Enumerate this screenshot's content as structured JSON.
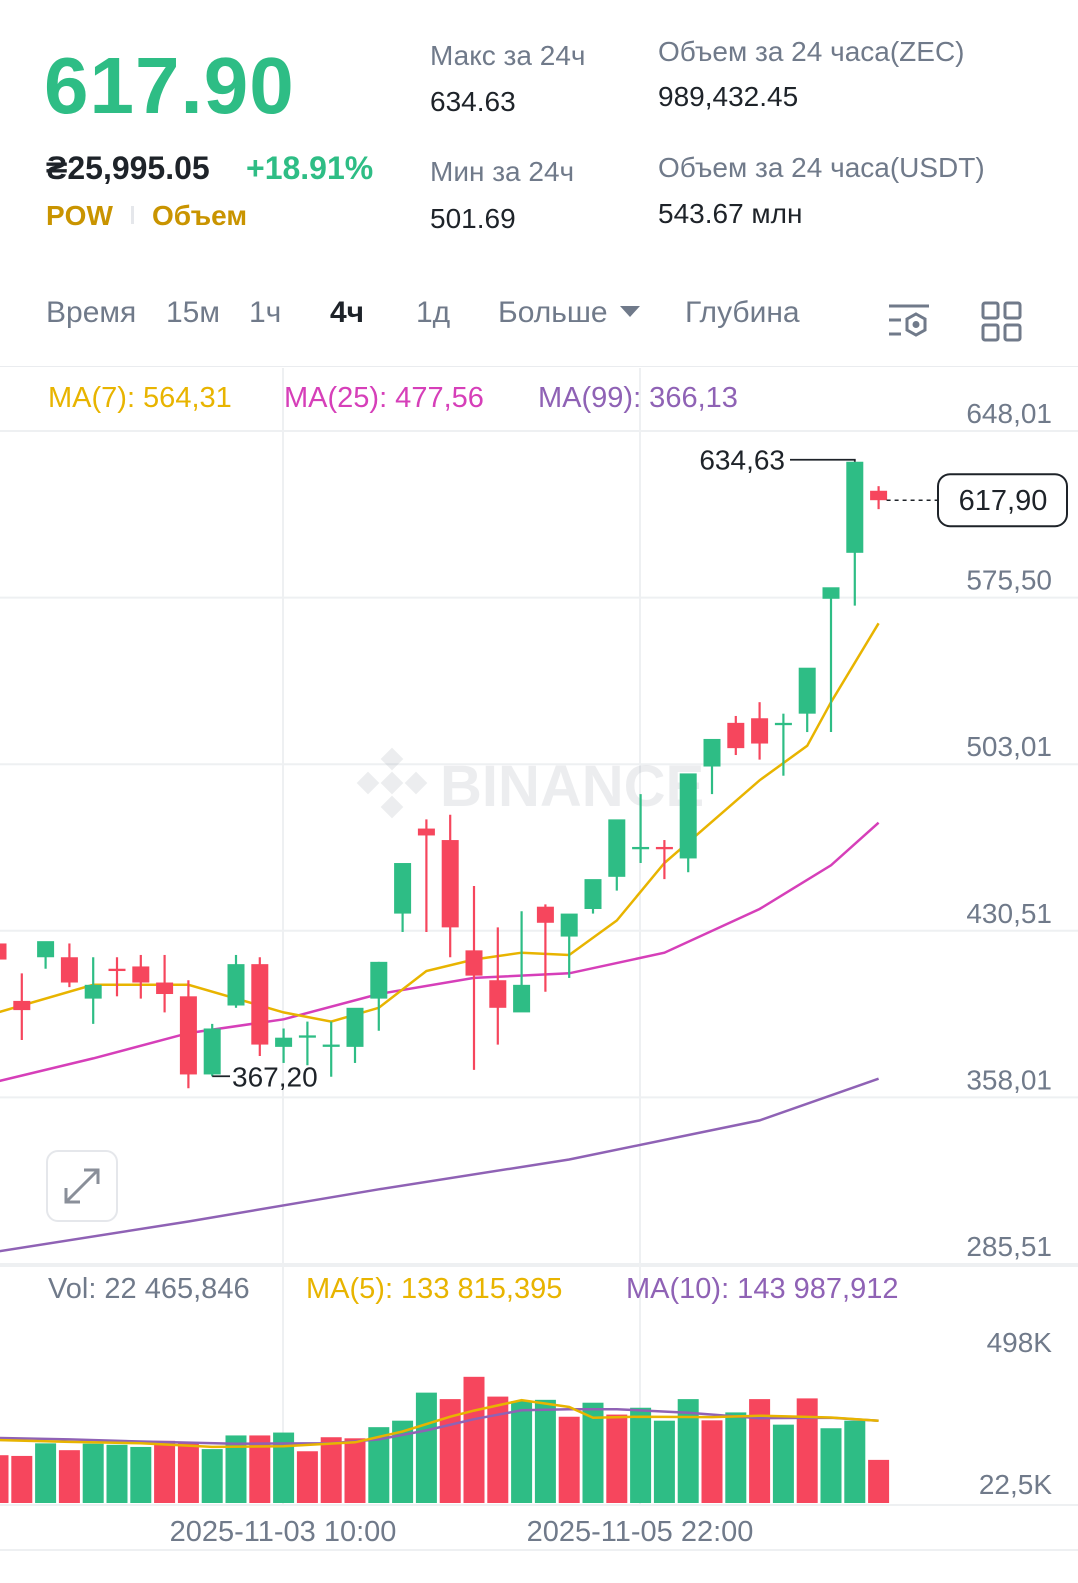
{
  "header": {
    "last_price": "617.90",
    "fiat_price": "₴25,995.05",
    "change_pct": "+18.91%",
    "tags": [
      "POW",
      "Объем"
    ],
    "stats": {
      "high_label": "Макс за 24ч",
      "high_value": "634.63",
      "low_label": "Мин за 24ч",
      "low_value": "501.69",
      "vol_base_label": "Объем за 24 часа(ZEC)",
      "vol_base_value": "989,432.45",
      "vol_quote_label": "Объем за 24 часа(USDT)",
      "vol_quote_value": "543.67 млн"
    }
  },
  "tabs": {
    "time": "Время",
    "m15": "15м",
    "h1": "1ч",
    "h4": "4ч",
    "d1": "1д",
    "more": "Больше",
    "depth": "Глубина"
  },
  "icons": {
    "indicator": "indicator-settings-icon",
    "layout": "grid-layout-icon",
    "expand": "expand-arrows-icon",
    "watermark": "binance-logo-icon"
  },
  "colors": {
    "up": "#2ebd85",
    "down": "#f6465d",
    "ma7": "#e8b400",
    "ma25": "#d63fb9",
    "ma99": "#8f62b5",
    "vol_ma5": "#e8b400",
    "vol_ma10": "#8f62b5"
  },
  "watermark": "BINANCE",
  "chart_data": [
    {
      "type": "candlestick",
      "interval": "4ч",
      "indicators": [
        {
          "name": "MA(7)",
          "label": "MA(7): 564,31",
          "latest": 564.31
        },
        {
          "name": "MA(25)",
          "label": "MA(25): 477,56",
          "latest": 477.56
        },
        {
          "name": "MA(99)",
          "label": "MA(99): 366,13",
          "latest": 366.13
        }
      ],
      "y_ticks": [
        "648,01",
        "575,50",
        "503,01",
        "430,51",
        "358,01",
        "285,51"
      ],
      "ylim": [
        285.51,
        648.01
      ],
      "x_ticks": [
        "2025-11-03 10:00",
        "2025-11-05 22:00"
      ],
      "high_marker": "634,63",
      "low_marker": "367,20",
      "last_price_label": "617,90",
      "last_price": 617.9,
      "candles": [
        [
          425,
          435,
          418,
          402
        ],
        [
          400,
          412,
          396,
          383
        ],
        [
          419,
          423,
          426,
          414
        ],
        [
          419,
          425,
          408,
          406
        ],
        [
          401,
          419,
          407,
          390
        ],
        [
          414,
          419,
          413,
          402
        ],
        [
          415,
          420,
          408,
          401
        ],
        [
          408,
          420,
          403,
          395
        ],
        [
          402,
          409,
          368,
          362
        ],
        [
          368,
          390,
          388,
          367.2
        ],
        [
          398,
          420,
          416,
          397
        ],
        [
          416,
          419,
          381,
          376
        ],
        [
          380,
          388,
          384,
          373
        ],
        [
          384,
          391,
          385,
          372
        ],
        [
          380,
          391,
          381,
          367
        ],
        [
          380,
          394,
          397,
          373
        ],
        [
          401,
          417,
          417,
          387
        ],
        [
          438,
          443,
          460,
          430
        ],
        [
          475,
          479,
          472,
          430
        ],
        [
          470,
          481,
          432,
          419
        ],
        [
          422,
          450,
          411,
          370
        ],
        [
          409,
          432,
          397,
          381
        ],
        [
          395,
          439,
          407,
          403
        ],
        [
          441,
          442,
          434,
          404
        ],
        [
          428,
          432,
          438,
          410
        ],
        [
          440,
          450,
          453,
          438
        ],
        [
          454,
          471,
          479,
          448
        ],
        [
          466,
          490,
          467,
          460
        ],
        [
          467,
          470,
          466,
          453
        ],
        [
          462,
          474,
          499,
          456
        ],
        [
          502,
          509,
          514,
          490
        ],
        [
          521,
          524,
          510,
          507
        ],
        [
          523,
          530,
          512,
          505
        ],
        [
          520,
          525,
          521,
          498
        ],
        [
          525,
          527,
          545,
          517
        ],
        [
          575,
          579,
          580,
          517
        ],
        [
          595,
          622,
          634.63,
          572
        ],
        [
          622,
          624,
          617.9,
          614
        ]
      ],
      "ma7": [
        [
          0,
          395
        ],
        [
          4,
          407
        ],
        [
          8,
          407
        ],
        [
          12,
          395
        ],
        [
          14,
          391
        ],
        [
          16,
          397
        ],
        [
          18,
          413
        ],
        [
          20,
          418
        ],
        [
          22,
          421
        ],
        [
          24,
          420
        ],
        [
          26,
          435
        ],
        [
          28,
          460
        ],
        [
          30,
          478
        ],
        [
          32,
          496
        ],
        [
          34,
          511
        ],
        [
          35,
          530
        ],
        [
          37,
          564.31
        ]
      ],
      "ma25": [
        [
          0,
          365
        ],
        [
          4,
          375
        ],
        [
          8,
          386
        ],
        [
          12,
          392
        ],
        [
          16,
          403
        ],
        [
          20,
          410
        ],
        [
          24,
          412
        ],
        [
          28,
          421
        ],
        [
          32,
          440
        ],
        [
          35,
          459
        ],
        [
          37,
          477.56
        ]
      ],
      "ma99": [
        [
          0,
          291
        ],
        [
          8,
          304
        ],
        [
          16,
          318
        ],
        [
          24,
          331
        ],
        [
          32,
          348
        ],
        [
          37,
          366.13
        ]
      ]
    },
    {
      "type": "bar",
      "title": "Vol",
      "label": "Vol: 22 465,846",
      "latest_volume": 22465.846,
      "indicators": [
        {
          "name": "MA(5)",
          "label": "MA(5): 133 815,395",
          "latest": 133815.395
        },
        {
          "name": "MA(10)",
          "label": "MA(10): 143 987,912",
          "latest": 143987.912
        }
      ],
      "y_ticks": [
        "498K",
        "22,5K"
      ],
      "values": [
        238,
        236,
        271,
        252,
        270,
        267,
        261,
        278,
        273,
        255,
        293,
        293,
        301,
        249,
        288,
        285,
        316,
        334,
        412,
        394,
        456,
        401,
        388,
        392,
        345,
        384,
        351,
        370,
        334,
        394,
        335,
        357,
        394,
        323,
        396,
        313,
        334,
        225
      ],
      "up_down": [
        "d",
        "d",
        "u",
        "d",
        "u",
        "u",
        "u",
        "d",
        "d",
        "u",
        "u",
        "d",
        "u",
        "d",
        "d",
        "d",
        "u",
        "u",
        "u",
        "d",
        "d",
        "d",
        "u",
        "u",
        "d",
        "u",
        "d",
        "u",
        "u",
        "u",
        "d",
        "u",
        "d",
        "u",
        "d",
        "u",
        "u",
        "d"
      ],
      "ma5": [
        [
          0,
          280
        ],
        [
          3,
          275
        ],
        [
          6,
          271
        ],
        [
          9,
          261
        ],
        [
          12,
          263
        ],
        [
          15,
          274
        ],
        [
          17,
          304
        ],
        [
          19,
          345
        ],
        [
          20,
          362
        ],
        [
          22,
          391
        ],
        [
          24,
          372
        ],
        [
          25,
          342
        ],
        [
          27,
          345
        ],
        [
          30,
          344
        ],
        [
          32,
          348
        ],
        [
          35,
          343
        ],
        [
          37,
          334
        ]
      ],
      "ma10": [
        [
          0,
          286
        ],
        [
          3,
          282
        ],
        [
          6,
          276
        ],
        [
          10,
          270
        ],
        [
          14,
          271
        ],
        [
          16,
          282
        ],
        [
          18,
          307
        ],
        [
          20,
          338
        ],
        [
          22,
          363
        ],
        [
          24,
          366
        ],
        [
          26,
          366
        ],
        [
          29,
          356
        ],
        [
          32,
          341
        ],
        [
          35,
          342
        ],
        [
          37,
          334
        ]
      ]
    }
  ]
}
